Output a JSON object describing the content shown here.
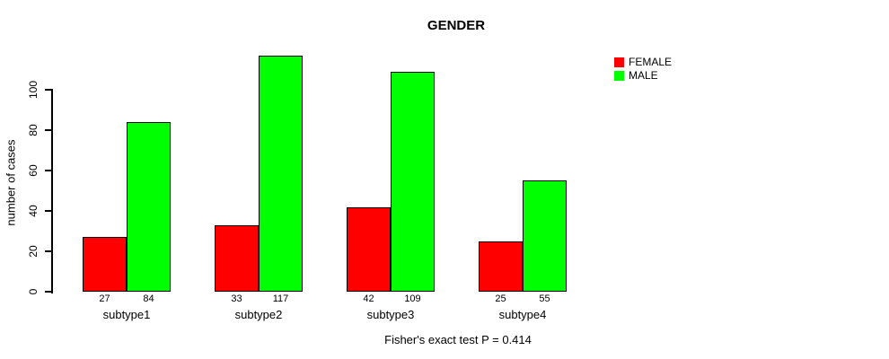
{
  "chart_data": {
    "type": "bar",
    "title": "GENDER",
    "ylabel": "number of cases",
    "xlabel": "",
    "categories": [
      "subtype1",
      "subtype2",
      "subtype3",
      "subtype4"
    ],
    "series": [
      {
        "name": "FEMALE",
        "color": "#FF0000",
        "values": [
          27,
          33,
          42,
          25
        ]
      },
      {
        "name": "MALE",
        "color": "#00FF00",
        "values": [
          84,
          117,
          109,
          55
        ]
      }
    ],
    "yticks": [
      0,
      20,
      40,
      60,
      80,
      100
    ],
    "ylim": [
      0,
      117
    ],
    "grid": false,
    "legend_position": "right",
    "bar_value_labels_shown": true,
    "annotation": "Fisher's exact test P = 0.414"
  }
}
